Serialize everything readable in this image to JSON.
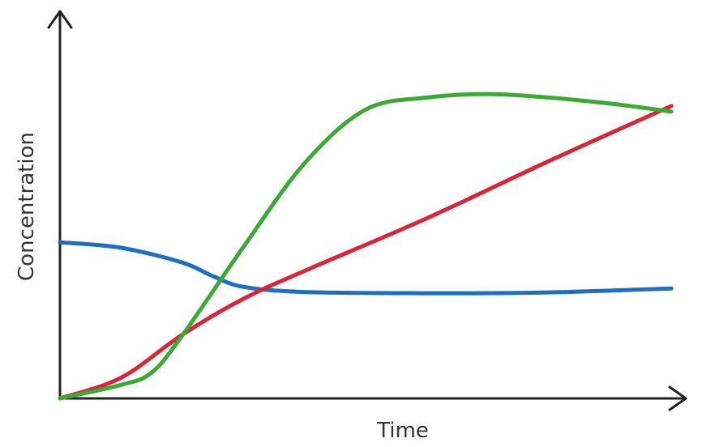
{
  "chart_data": {
    "type": "line",
    "title": "",
    "xlabel": "Time",
    "ylabel": "Concentration",
    "xlim": [
      0,
      100
    ],
    "ylim": [
      0,
      100
    ],
    "grid": false,
    "legend": "none",
    "series": [
      {
        "color": "#1f6fbf",
        "points": [
          [
            0,
            39.2
          ],
          [
            10,
            37.8
          ],
          [
            20,
            34.1
          ],
          [
            25,
            30.7
          ],
          [
            30,
            28.0
          ],
          [
            40,
            26.7
          ],
          [
            60,
            26.4
          ],
          [
            80,
            26.6
          ],
          [
            100,
            27.6
          ]
        ]
      },
      {
        "color": "#d9253a",
        "points": [
          [
            0,
            0
          ],
          [
            10,
            5.2
          ],
          [
            20,
            16.0
          ],
          [
            30,
            25.0
          ],
          [
            40,
            32.0
          ],
          [
            60,
            45.2
          ],
          [
            80,
            59.6
          ],
          [
            100,
            73.4
          ]
        ]
      },
      {
        "color": "#3aaa35",
        "points": [
          [
            0,
            0
          ],
          [
            10,
            3.4
          ],
          [
            15,
            6.5
          ],
          [
            20,
            15.8
          ],
          [
            30,
            38.0
          ],
          [
            40,
            59.0
          ],
          [
            50,
            72.5
          ],
          [
            60,
            75.5
          ],
          [
            70,
            76.4
          ],
          [
            80,
            75.5
          ],
          [
            90,
            74.0
          ],
          [
            100,
            72.0
          ]
        ]
      }
    ]
  }
}
